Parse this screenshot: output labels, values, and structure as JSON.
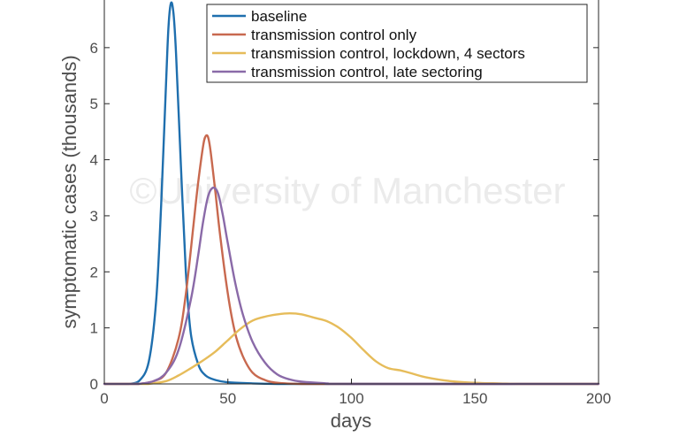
{
  "watermark": "©University of Manchester",
  "chart_data": {
    "type": "line",
    "title": "",
    "xlabel": "days",
    "ylabel": "symptomatic cases (thousands)",
    "xlim": [
      0,
      200
    ],
    "ylim": [
      0,
      6.85
    ],
    "xticks": [
      "0",
      "50",
      "100",
      "150",
      "200"
    ],
    "yticks": [
      "0",
      "1",
      "2",
      "3",
      "4",
      "5",
      "6"
    ],
    "grid": false,
    "legend_position": "top-right",
    "series": [
      {
        "name": "baseline",
        "color": "#1f6fae",
        "x": [
          10,
          14,
          18,
          21,
          23,
          25,
          26,
          27,
          28,
          29,
          31,
          33,
          35,
          38,
          41,
          45,
          50,
          60,
          70,
          80,
          100,
          200
        ],
        "y": [
          0,
          0.05,
          0.4,
          1.5,
          3.2,
          5.4,
          6.4,
          6.8,
          6.6,
          5.9,
          3.9,
          2.0,
          0.9,
          0.35,
          0.15,
          0.07,
          0.03,
          0.01,
          0,
          0,
          0,
          0
        ]
      },
      {
        "name": "transmission control only",
        "color": "#c8694f",
        "x": [
          14,
          20,
          25,
          30,
          33,
          36,
          38,
          40,
          41,
          42,
          43,
          45,
          47,
          50,
          53,
          56,
          60,
          65,
          70,
          80,
          100,
          200
        ],
        "y": [
          0,
          0.05,
          0.2,
          0.8,
          1.6,
          2.8,
          3.6,
          4.25,
          4.42,
          4.4,
          4.15,
          3.4,
          2.6,
          1.6,
          0.9,
          0.5,
          0.2,
          0.07,
          0.02,
          0,
          0,
          0
        ]
      },
      {
        "name": "transmission control, lockdown, 4 sectors",
        "color": "#e6bc5a",
        "x": [
          18,
          25,
          30,
          35,
          40,
          45,
          50,
          55,
          60,
          65,
          70,
          75,
          80,
          85,
          90,
          95,
          100,
          105,
          110,
          115,
          120,
          125,
          130,
          140,
          150,
          160,
          170,
          200
        ],
        "y": [
          0,
          0.05,
          0.15,
          0.28,
          0.42,
          0.58,
          0.78,
          0.98,
          1.13,
          1.2,
          1.24,
          1.26,
          1.24,
          1.18,
          1.12,
          1.0,
          0.82,
          0.6,
          0.4,
          0.28,
          0.24,
          0.18,
          0.12,
          0.05,
          0.02,
          0.01,
          0,
          0
        ]
      },
      {
        "name": "transmission control, late sectoring",
        "color": "#8a6aa8",
        "x": [
          14,
          20,
          25,
          30,
          35,
          38,
          40,
          42,
          44,
          46,
          48,
          50,
          53,
          56,
          60,
          65,
          70,
          75,
          80,
          90,
          100,
          200
        ],
        "y": [
          0,
          0.05,
          0.2,
          0.6,
          1.5,
          2.3,
          2.9,
          3.35,
          3.5,
          3.4,
          3.0,
          2.5,
          1.8,
          1.25,
          0.75,
          0.38,
          0.17,
          0.08,
          0.04,
          0.01,
          0,
          0
        ]
      }
    ]
  }
}
